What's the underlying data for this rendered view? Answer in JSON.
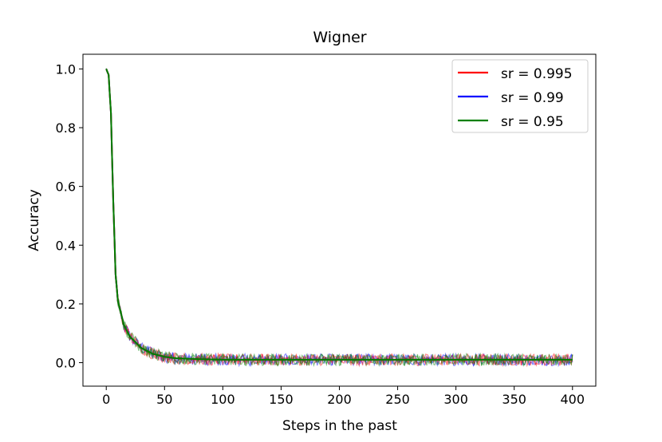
{
  "chart_data": {
    "type": "line",
    "title": "Wigner",
    "xlabel": "Steps in the past",
    "ylabel": "Accuracy",
    "xlim": [
      -20,
      420
    ],
    "ylim": [
      -0.08,
      1.05
    ],
    "xticks": [
      0,
      50,
      100,
      150,
      200,
      250,
      300,
      350,
      400
    ],
    "yticks": [
      0.0,
      0.2,
      0.4,
      0.6,
      0.8,
      1.0
    ],
    "xtick_labels": [
      "0",
      "50",
      "100",
      "150",
      "200",
      "250",
      "300",
      "350",
      "400"
    ],
    "ytick_labels": [
      "0.0",
      "0.2",
      "0.4",
      "0.6",
      "0.8",
      "1.0"
    ],
    "legend_position": "top-right",
    "grid": false,
    "noise_amplitude": 0.02,
    "series": [
      {
        "name": "sr = 0.995",
        "color": "#ff0000",
        "x": [
          0,
          2,
          4,
          6,
          8,
          10,
          15,
          20,
          30,
          40,
          50,
          60,
          80,
          100,
          150,
          200,
          250,
          300,
          350,
          400
        ],
        "values": [
          1.0,
          0.98,
          0.85,
          0.55,
          0.3,
          0.21,
          0.13,
          0.09,
          0.05,
          0.03,
          0.02,
          0.015,
          0.012,
          0.01,
          0.01,
          0.01,
          0.01,
          0.01,
          0.01,
          0.01
        ]
      },
      {
        "name": "sr = 0.99",
        "color": "#0000ff",
        "x": [
          0,
          2,
          4,
          6,
          8,
          10,
          15,
          20,
          30,
          40,
          50,
          60,
          80,
          100,
          150,
          200,
          250,
          300,
          350,
          400
        ],
        "values": [
          1.0,
          0.98,
          0.85,
          0.55,
          0.3,
          0.21,
          0.13,
          0.09,
          0.05,
          0.03,
          0.02,
          0.015,
          0.012,
          0.01,
          0.01,
          0.01,
          0.01,
          0.01,
          0.01,
          0.01
        ]
      },
      {
        "name": "sr = 0.95",
        "color": "#008000",
        "x": [
          0,
          2,
          4,
          6,
          8,
          10,
          15,
          20,
          30,
          40,
          50,
          60,
          80,
          100,
          150,
          200,
          250,
          300,
          350,
          400
        ],
        "values": [
          1.0,
          0.98,
          0.85,
          0.55,
          0.3,
          0.21,
          0.13,
          0.09,
          0.05,
          0.03,
          0.02,
          0.015,
          0.012,
          0.01,
          0.01,
          0.01,
          0.01,
          0.01,
          0.01,
          0.01
        ]
      }
    ]
  }
}
